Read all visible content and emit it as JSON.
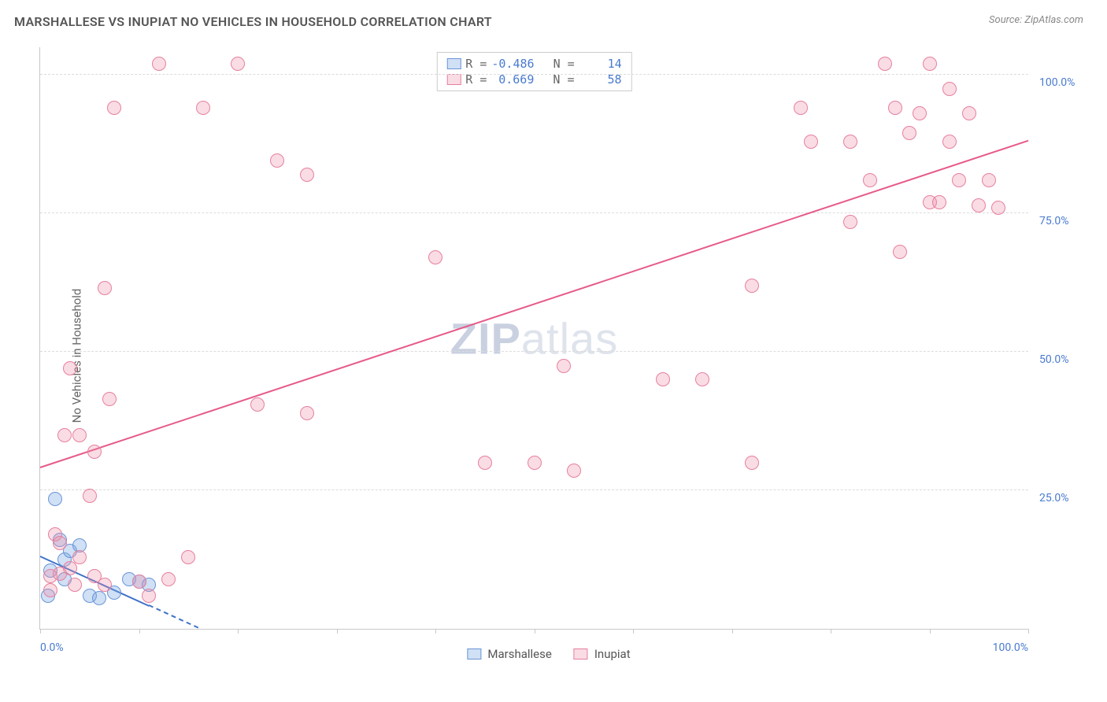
{
  "title": "MARSHALLESE VS INUPIAT NO VEHICLES IN HOUSEHOLD CORRELATION CHART",
  "source": "Source: ZipAtlas.com",
  "ylabel": "No Vehicles in Household",
  "watermark_a": "ZIP",
  "watermark_b": "atlas",
  "chart": {
    "type": "scatter",
    "xlim": [
      0,
      100
    ],
    "ylim": [
      0,
      105
    ],
    "yticks": [
      25,
      50,
      75,
      100
    ],
    "ytick_labels": [
      "25.0%",
      "50.0%",
      "75.0%",
      "100.0%"
    ],
    "xticks": [
      0,
      10,
      20,
      30,
      40,
      50,
      60,
      70,
      80,
      90,
      100
    ],
    "xtick_labels_shown": {
      "0": "0.0%",
      "100": "100.0%"
    },
    "grid_color": "#dcdcdc",
    "axis_color": "#c8c8c8",
    "background": "#ffffff",
    "marker_radius": 9,
    "marker_stroke": 1.5,
    "series": [
      {
        "name": "Marshallese",
        "fill": "rgba(120,165,225,0.35)",
        "stroke": "#6a95d8",
        "R": "-0.486",
        "N": "14",
        "trend": {
          "x1": 0,
          "y1": 13,
          "x2": 16,
          "y2": 0,
          "dashed_after": 11,
          "color": "#3f72c9"
        },
        "points": [
          [
            1.5,
            23.5
          ],
          [
            2.0,
            16.0
          ],
          [
            2.5,
            12.5
          ],
          [
            2.5,
            9.0
          ],
          [
            1.0,
            10.5
          ],
          [
            0.8,
            6.0
          ],
          [
            3.0,
            14.0
          ],
          [
            4.0,
            15.0
          ],
          [
            5.0,
            6.0
          ],
          [
            6.0,
            5.5
          ],
          [
            7.5,
            6.5
          ],
          [
            9.0,
            9.0
          ],
          [
            10.0,
            8.5
          ],
          [
            11.0,
            8.0
          ]
        ]
      },
      {
        "name": "Inupiat",
        "fill": "rgba(240,140,165,0.30)",
        "stroke": "#e6809e",
        "R": "0.669",
        "N": "58",
        "trend": {
          "x1": 0,
          "y1": 29,
          "x2": 100,
          "y2": 88,
          "color": "#e65a8a"
        },
        "points": [
          [
            12.0,
            102.0
          ],
          [
            20.0,
            102.0
          ],
          [
            7.5,
            94.0
          ],
          [
            16.5,
            94.0
          ],
          [
            24.0,
            84.5
          ],
          [
            27.0,
            82.0
          ],
          [
            6.5,
            61.5
          ],
          [
            3.0,
            47.0
          ],
          [
            7.0,
            41.5
          ],
          [
            2.5,
            35.0
          ],
          [
            4.0,
            35.0
          ],
          [
            5.5,
            32.0
          ],
          [
            5.0,
            24.0
          ],
          [
            1.5,
            17.0
          ],
          [
            2.0,
            10.0
          ],
          [
            3.5,
            8.0
          ],
          [
            1.0,
            9.5
          ],
          [
            4.0,
            13.0
          ],
          [
            5.5,
            9.5
          ],
          [
            6.5,
            8.0
          ],
          [
            10.0,
            8.5
          ],
          [
            13.0,
            9.0
          ],
          [
            15.0,
            13.0
          ],
          [
            22.0,
            40.5
          ],
          [
            27.0,
            39.0
          ],
          [
            40.0,
            67.0
          ],
          [
            45.0,
            30.0
          ],
          [
            50.0,
            30.0
          ],
          [
            54.0,
            28.5
          ],
          [
            53.0,
            47.5
          ],
          [
            63.0,
            45.0
          ],
          [
            67.0,
            45.0
          ],
          [
            72.0,
            62.0
          ],
          [
            72.0,
            30.0
          ],
          [
            77.0,
            94.0
          ],
          [
            78.0,
            88.0
          ],
          [
            82.0,
            88.0
          ],
          [
            82.0,
            73.5
          ],
          [
            84.0,
            81.0
          ],
          [
            85.5,
            102.0
          ],
          [
            90.0,
            102.0
          ],
          [
            86.5,
            94.0
          ],
          [
            89.0,
            93.0
          ],
          [
            92.0,
            97.5
          ],
          [
            94.0,
            93.0
          ],
          [
            88.0,
            89.5
          ],
          [
            92.0,
            88.0
          ],
          [
            90.0,
            77.0
          ],
          [
            91.0,
            77.0
          ],
          [
            93.0,
            81.0
          ],
          [
            96.0,
            81.0
          ],
          [
            87.0,
            68.0
          ],
          [
            95.0,
            76.5
          ],
          [
            97.0,
            76.0
          ],
          [
            11.0,
            6.0
          ],
          [
            2.0,
            15.5
          ],
          [
            3.0,
            11.0
          ],
          [
            1.0,
            7.0
          ]
        ]
      }
    ]
  },
  "legend_bottom": [
    "Marshallese",
    "Inupiat"
  ]
}
